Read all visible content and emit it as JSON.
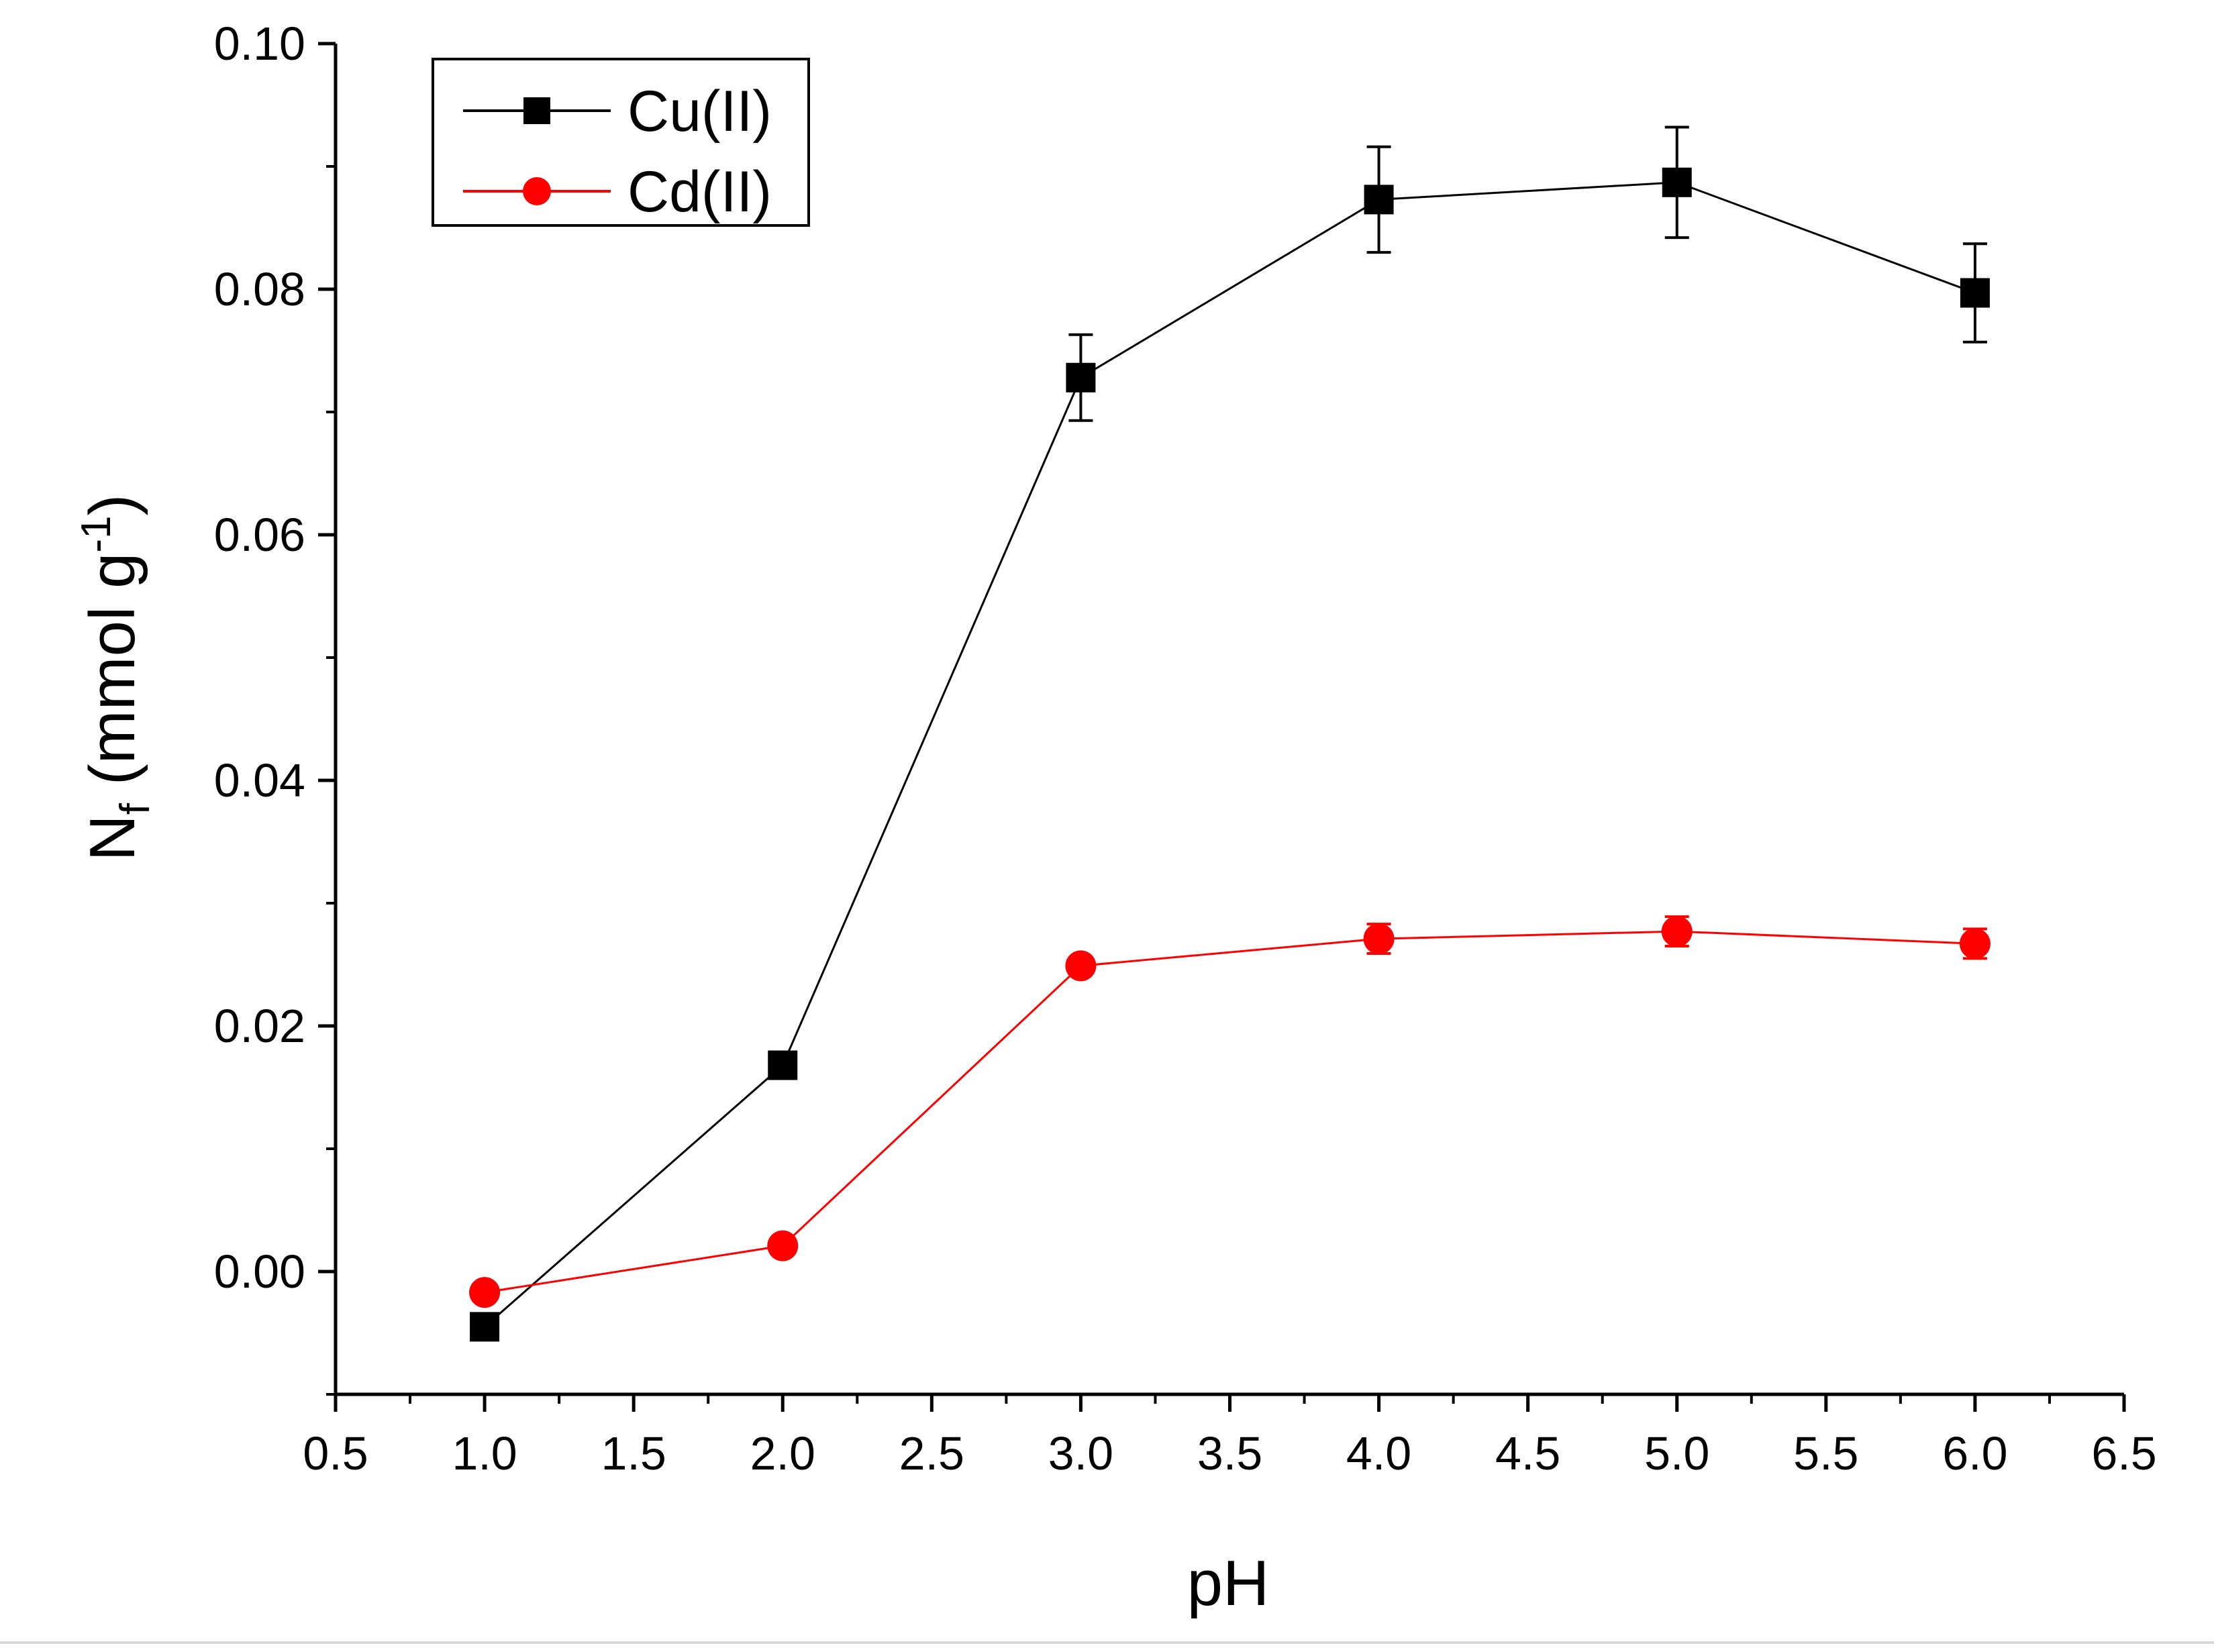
{
  "chart_data": {
    "type": "line",
    "title": "",
    "xlabel": "pH",
    "ylabel": {
      "main": "N",
      "sub": "f",
      "unit_open": " (mmol g",
      "sup": "-1",
      "unit_close": ")"
    },
    "xlim": [
      0.5,
      6.5
    ],
    "ylim": [
      -0.01,
      0.1
    ],
    "x_ticks": [
      "0.5",
      "1.0",
      "1.5",
      "2.0",
      "2.5",
      "3.0",
      "3.5",
      "4.0",
      "4.5",
      "5.0",
      "5.5",
      "6.0",
      "6.5"
    ],
    "y_ticks": [
      "0.00",
      "0.02",
      "0.04",
      "0.06",
      "0.08",
      "0.10"
    ],
    "grid": false,
    "legend_position": "top-left",
    "series": [
      {
        "name": "Cu(II)",
        "color": "#000000",
        "marker": "square",
        "x": [
          1.0,
          2.0,
          3.0,
          4.0,
          5.0,
          6.0
        ],
        "y": [
          -0.0045,
          0.0168,
          0.0728,
          0.0873,
          0.0887,
          0.0797
        ],
        "err": [
          0.0,
          0.0,
          0.0035,
          0.0043,
          0.0045,
          0.004
        ]
      },
      {
        "name": "Cd(II)",
        "color": "#ff0000",
        "marker": "circle",
        "x": [
          1.0,
          2.0,
          3.0,
          4.0,
          5.0,
          6.0
        ],
        "y": [
          -0.0017,
          0.0021,
          0.0249,
          0.0271,
          0.0277,
          0.0267
        ],
        "err": [
          0.0,
          0.0,
          0.0,
          0.0012,
          0.0012,
          0.0012
        ]
      }
    ]
  }
}
